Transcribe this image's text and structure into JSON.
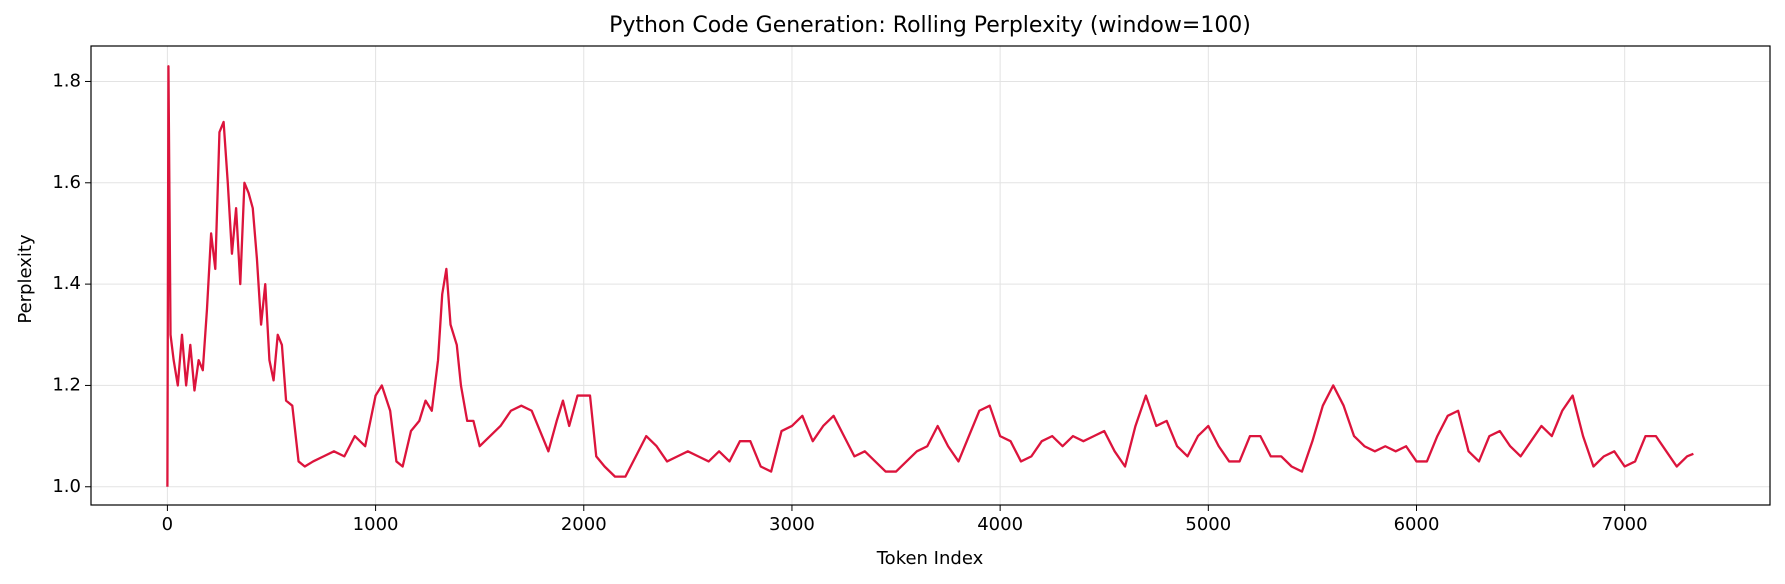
{
  "chart_data": {
    "type": "line",
    "title": "Python Code Generation: Rolling Perplexity (window=100)",
    "xlabel": "Token Index",
    "ylabel": "Perplexity",
    "x": [
      0,
      5,
      15,
      30,
      50,
      70,
      90,
      110,
      130,
      150,
      170,
      190,
      210,
      230,
      250,
      270,
      290,
      310,
      330,
      350,
      370,
      390,
      410,
      430,
      450,
      470,
      490,
      510,
      530,
      550,
      570,
      600,
      630,
      660,
      700,
      750,
      800,
      850,
      900,
      950,
      1000,
      1030,
      1070,
      1100,
      1130,
      1170,
      1210,
      1240,
      1270,
      1300,
      1320,
      1340,
      1360,
      1390,
      1410,
      1440,
      1470,
      1500,
      1550,
      1600,
      1650,
      1700,
      1750,
      1800,
      1830,
      1870,
      1900,
      1930,
      1970,
      2030,
      2060,
      2100,
      2150,
      2200,
      2250,
      2300,
      2350,
      2400,
      2450,
      2500,
      2550,
      2600,
      2650,
      2700,
      2750,
      2800,
      2850,
      2900,
      2950,
      3000,
      3050,
      3100,
      3150,
      3200,
      3250,
      3300,
      3350,
      3400,
      3450,
      3500,
      3550,
      3600,
      3650,
      3700,
      3750,
      3800,
      3850,
      3900,
      3950,
      4000,
      4050,
      4100,
      4150,
      4200,
      4250,
      4300,
      4350,
      4400,
      4450,
      4500,
      4550,
      4600,
      4650,
      4700,
      4750,
      4800,
      4850,
      4900,
      4950,
      5000,
      5050,
      5100,
      5150,
      5200,
      5250,
      5300,
      5350,
      5400,
      5450,
      5500,
      5550,
      5600,
      5650,
      5700,
      5750,
      5800,
      5850,
      5900,
      5950,
      6000,
      6050,
      6100,
      6150,
      6200,
      6250,
      6300,
      6350,
      6400,
      6450,
      6500,
      6550,
      6600,
      6650,
      6700,
      6750,
      6800,
      6850,
      6900,
      6950,
      7000,
      7050,
      7100,
      7150,
      7200,
      7250,
      7300,
      7330
    ],
    "series": [
      {
        "name": "Perplexity",
        "color": "#dc143c",
        "values": [
          1.0,
          1.83,
          1.3,
          1.25,
          1.2,
          1.3,
          1.2,
          1.28,
          1.19,
          1.25,
          1.23,
          1.35,
          1.5,
          1.43,
          1.7,
          1.72,
          1.6,
          1.46,
          1.55,
          1.4,
          1.6,
          1.58,
          1.55,
          1.45,
          1.32,
          1.4,
          1.25,
          1.21,
          1.3,
          1.28,
          1.17,
          1.16,
          1.05,
          1.04,
          1.05,
          1.06,
          1.07,
          1.06,
          1.1,
          1.08,
          1.18,
          1.2,
          1.15,
          1.05,
          1.04,
          1.11,
          1.13,
          1.17,
          1.15,
          1.25,
          1.38,
          1.43,
          1.32,
          1.28,
          1.2,
          1.13,
          1.13,
          1.08,
          1.1,
          1.12,
          1.15,
          1.16,
          1.15,
          1.1,
          1.07,
          1.13,
          1.17,
          1.12,
          1.18,
          1.18,
          1.06,
          1.04,
          1.02,
          1.02,
          1.06,
          1.1,
          1.08,
          1.05,
          1.06,
          1.07,
          1.06,
          1.05,
          1.07,
          1.05,
          1.09,
          1.09,
          1.04,
          1.03,
          1.11,
          1.12,
          1.14,
          1.09,
          1.12,
          1.14,
          1.1,
          1.06,
          1.07,
          1.05,
          1.03,
          1.03,
          1.05,
          1.07,
          1.08,
          1.12,
          1.08,
          1.05,
          1.1,
          1.15,
          1.16,
          1.1,
          1.09,
          1.05,
          1.06,
          1.09,
          1.1,
          1.08,
          1.1,
          1.09,
          1.1,
          1.11,
          1.07,
          1.04,
          1.12,
          1.18,
          1.12,
          1.13,
          1.08,
          1.06,
          1.1,
          1.12,
          1.08,
          1.05,
          1.05,
          1.1,
          1.1,
          1.06,
          1.06,
          1.04,
          1.03,
          1.09,
          1.16,
          1.2,
          1.16,
          1.1,
          1.08,
          1.07,
          1.08,
          1.07,
          1.08,
          1.05,
          1.05,
          1.1,
          1.14,
          1.15,
          1.07,
          1.05,
          1.1,
          1.11,
          1.08,
          1.06,
          1.09,
          1.12,
          1.1,
          1.15,
          1.18,
          1.1,
          1.04,
          1.06,
          1.07,
          1.04,
          1.05,
          1.1,
          1.1,
          1.07,
          1.04,
          1.06,
          1.065
        ]
      }
    ],
    "xlim": [
      -367,
      7698
    ],
    "ylim": [
      0.964,
      1.87
    ],
    "xticks": [
      0,
      1000,
      2000,
      3000,
      4000,
      5000,
      6000,
      7000
    ],
    "yticks": [
      {
        "value": 1.0,
        "label": "1.0"
      },
      {
        "value": 1.2,
        "label": "1.2"
      },
      {
        "value": 1.4,
        "label": "1.4"
      },
      {
        "value": 1.6,
        "label": "1.6"
      },
      {
        "value": 1.8,
        "label": "1.8"
      }
    ],
    "grid": true
  }
}
